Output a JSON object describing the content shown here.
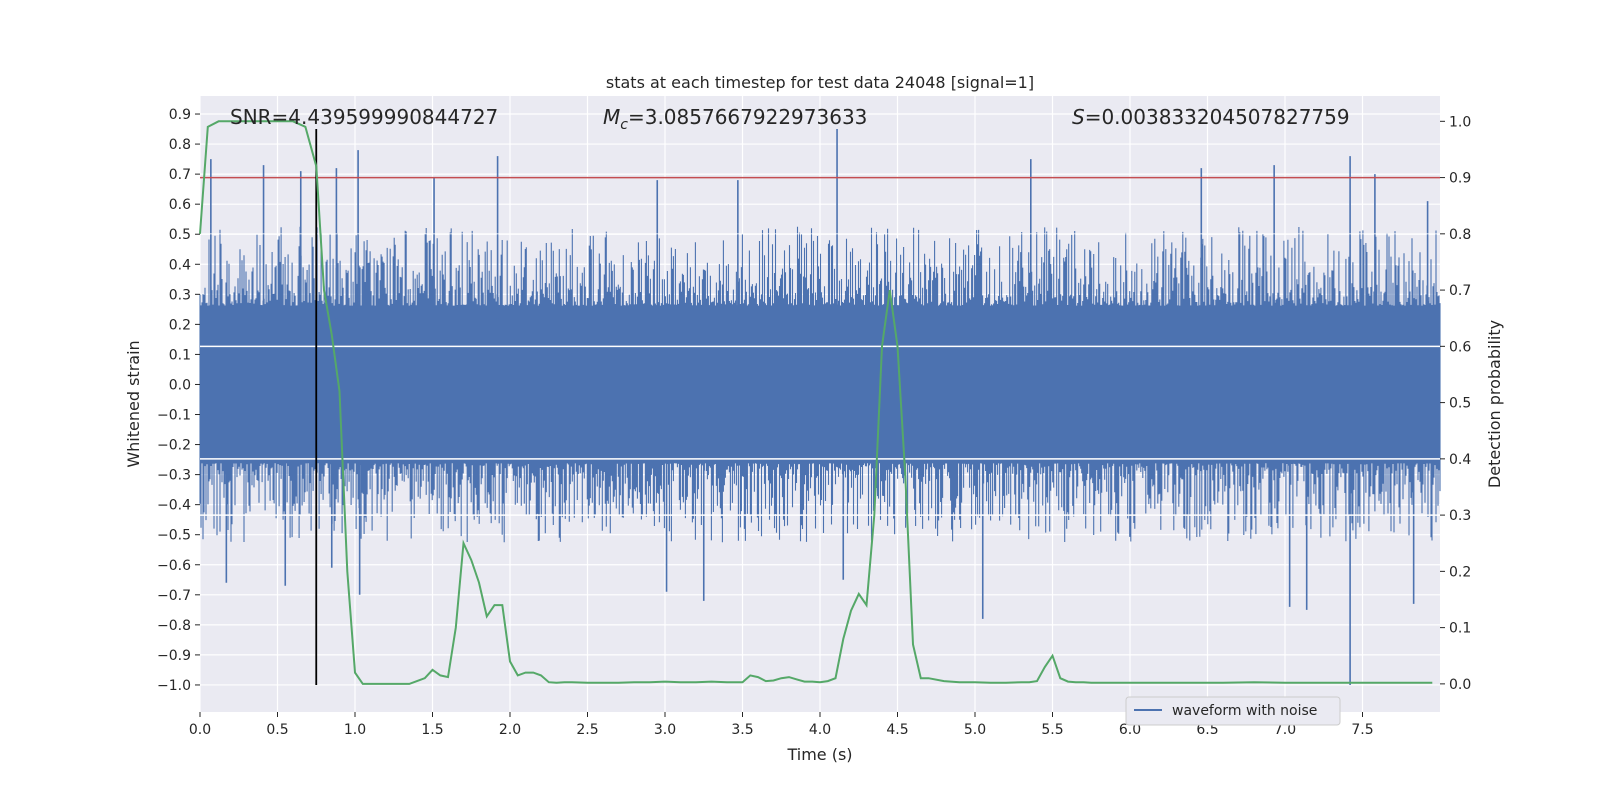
{
  "chart_data": {
    "type": "line",
    "title": "stats at each timestep for test data 24048 [signal=1]",
    "xlabel": "Time (s)",
    "ylabel_left": "Whitened strain",
    "ylabel_right": "Detection probability",
    "xlim": [
      0.0,
      8.0
    ],
    "ylim_left": [
      -1.09,
      0.96
    ],
    "ylim_right": [
      -0.05,
      1.045
    ],
    "x_ticks": [
      0.0,
      0.5,
      1.0,
      1.5,
      2.0,
      2.5,
      3.0,
      3.5,
      4.0,
      4.5,
      5.0,
      5.5,
      6.0,
      6.5,
      7.0,
      7.5
    ],
    "x_tick_labels": [
      "0.0",
      "0.5",
      "1.0",
      "1.5",
      "2.0",
      "2.5",
      "3.0",
      "3.5",
      "4.0",
      "4.5",
      "5.0",
      "5.5",
      "6.0",
      "6.5",
      "7.0",
      "7.5"
    ],
    "y_left_ticks": [
      0.9,
      0.8,
      0.7,
      0.6,
      0.5,
      0.4,
      0.3,
      0.2,
      0.1,
      0.0,
      -0.1,
      -0.2,
      -0.3,
      -0.4,
      -0.5,
      -0.6,
      -0.7,
      -0.8,
      -0.9,
      -1.0
    ],
    "y_left_tick_labels": [
      "0.9",
      "0.8",
      "0.7",
      "0.6",
      "0.5",
      "0.4",
      "0.3",
      "0.2",
      "0.1",
      "0.0",
      "−0.1",
      "−0.2",
      "−0.3",
      "−0.4",
      "−0.5",
      "−0.6",
      "−0.7",
      "−0.8",
      "−0.9",
      "−1.0"
    ],
    "y_right_ticks": [
      1.0,
      0.9,
      0.8,
      0.7,
      0.6,
      0.5,
      0.4,
      0.3,
      0.2,
      0.1,
      0.0
    ],
    "y_right_tick_labels": [
      "1.0",
      "0.9",
      "0.8",
      "0.7",
      "0.6",
      "0.5",
      "0.4",
      "0.3",
      "0.2",
      "0.1",
      "0.0"
    ],
    "grid": true,
    "legend": {
      "placement": "lower-right",
      "entries": [
        "waveform with noise"
      ]
    },
    "annotations": {
      "snr_label": "SNR=4.439599990844727",
      "mc_symbol": "M",
      "mc_subscript": "c",
      "mc_value": "=3.0857667922973633",
      "s_symbol": "S",
      "s_value": "=0.003833204507827759"
    },
    "threshold_line": {
      "y_right": 0.9,
      "color": "#c44e52"
    },
    "vertical_marker": {
      "x": 0.75,
      "y_left_range": [
        -1.0,
        0.85
      ],
      "color": "#000000"
    },
    "series": [
      {
        "name": "waveform with noise",
        "color": "#4c72b0",
        "kind": "whitened strain, noise-dominated, sampled densely over 0–8 s",
        "typical_envelope": [
          -0.35,
          0.35
        ],
        "spikes": [
          {
            "x": 0.07,
            "y": 0.75
          },
          {
            "x": 0.17,
            "y": -0.66
          },
          {
            "x": 0.41,
            "y": 0.73
          },
          {
            "x": 0.55,
            "y": -0.67
          },
          {
            "x": 0.65,
            "y": 0.71
          },
          {
            "x": 0.85,
            "y": -0.61
          },
          {
            "x": 0.88,
            "y": 0.72
          },
          {
            "x": 1.02,
            "y": 0.78
          },
          {
            "x": 1.03,
            "y": -0.7
          },
          {
            "x": 1.51,
            "y": 0.69
          },
          {
            "x": 1.92,
            "y": 0.76
          },
          {
            "x": 2.95,
            "y": 0.68
          },
          {
            "x": 3.01,
            "y": -0.69
          },
          {
            "x": 3.25,
            "y": -0.72
          },
          {
            "x": 3.47,
            "y": 0.68
          },
          {
            "x": 4.11,
            "y": 0.85
          },
          {
            "x": 4.15,
            "y": -0.65
          },
          {
            "x": 5.05,
            "y": -0.78
          },
          {
            "x": 5.36,
            "y": 0.75
          },
          {
            "x": 6.46,
            "y": 0.72
          },
          {
            "x": 6.93,
            "y": 0.73
          },
          {
            "x": 7.03,
            "y": -0.74
          },
          {
            "x": 7.14,
            "y": -0.75
          },
          {
            "x": 7.42,
            "y": 0.76
          },
          {
            "x": 7.42,
            "y": -1.0
          },
          {
            "x": 7.58,
            "y": 0.7
          },
          {
            "x": 7.83,
            "y": -0.73
          },
          {
            "x": 7.92,
            "y": 0.61
          }
        ]
      },
      {
        "name": "",
        "color": "#55a868",
        "axis": "right",
        "x": [
          0.0,
          0.05,
          0.12,
          0.2,
          0.3,
          0.4,
          0.5,
          0.6,
          0.68,
          0.75,
          0.8,
          0.85,
          0.9,
          0.95,
          1.0,
          1.05,
          1.1,
          1.15,
          1.2,
          1.25,
          1.3,
          1.35,
          1.4,
          1.45,
          1.5,
          1.55,
          1.6,
          1.65,
          1.7,
          1.75,
          1.8,
          1.85,
          1.9,
          1.95,
          2.0,
          2.05,
          2.1,
          2.15,
          2.2,
          2.25,
          2.3,
          2.35,
          2.4,
          2.5,
          2.6,
          2.7,
          2.8,
          2.9,
          3.0,
          3.1,
          3.2,
          3.3,
          3.4,
          3.5,
          3.55,
          3.6,
          3.65,
          3.7,
          3.75,
          3.8,
          3.85,
          3.9,
          3.95,
          4.0,
          4.05,
          4.1,
          4.15,
          4.2,
          4.25,
          4.3,
          4.35,
          4.4,
          4.45,
          4.5,
          4.55,
          4.6,
          4.65,
          4.7,
          4.8,
          4.9,
          5.0,
          5.1,
          5.2,
          5.3,
          5.35,
          5.4,
          5.45,
          5.5,
          5.55,
          5.6,
          5.65,
          5.7,
          5.75,
          5.8,
          5.9,
          6.0,
          6.2,
          6.4,
          6.6,
          6.8,
          7.0,
          7.2,
          7.4,
          7.6,
          7.8,
          7.95
        ],
        "values": [
          0.8,
          0.99,
          1.0,
          1.0,
          1.0,
          1.0,
          1.0,
          1.0,
          0.99,
          0.92,
          0.7,
          0.62,
          0.52,
          0.2,
          0.02,
          0.0,
          0.0,
          0.0,
          0.0,
          0.0,
          0.0,
          0.0,
          0.005,
          0.01,
          0.025,
          0.015,
          0.012,
          0.1,
          0.25,
          0.22,
          0.18,
          0.12,
          0.14,
          0.14,
          0.04,
          0.015,
          0.02,
          0.02,
          0.015,
          0.003,
          0.002,
          0.003,
          0.003,
          0.002,
          0.002,
          0.002,
          0.003,
          0.003,
          0.004,
          0.003,
          0.003,
          0.004,
          0.003,
          0.003,
          0.015,
          0.012,
          0.005,
          0.006,
          0.01,
          0.012,
          0.008,
          0.004,
          0.004,
          0.003,
          0.005,
          0.01,
          0.08,
          0.13,
          0.16,
          0.14,
          0.3,
          0.6,
          0.7,
          0.6,
          0.37,
          0.07,
          0.01,
          0.01,
          0.005,
          0.003,
          0.003,
          0.002,
          0.002,
          0.003,
          0.003,
          0.005,
          0.03,
          0.05,
          0.01,
          0.004,
          0.003,
          0.003,
          0.002,
          0.002,
          0.002,
          0.002,
          0.002,
          0.002,
          0.002,
          0.003,
          0.002,
          0.002,
          0.002,
          0.002,
          0.002,
          0.002
        ]
      }
    ]
  },
  "colors": {
    "plot_background": "#eaeaf2",
    "grid": "#ffffff",
    "strain": "#4c72b0",
    "probability": "#55a868",
    "threshold": "#c44e52",
    "marker": "#000000"
  }
}
